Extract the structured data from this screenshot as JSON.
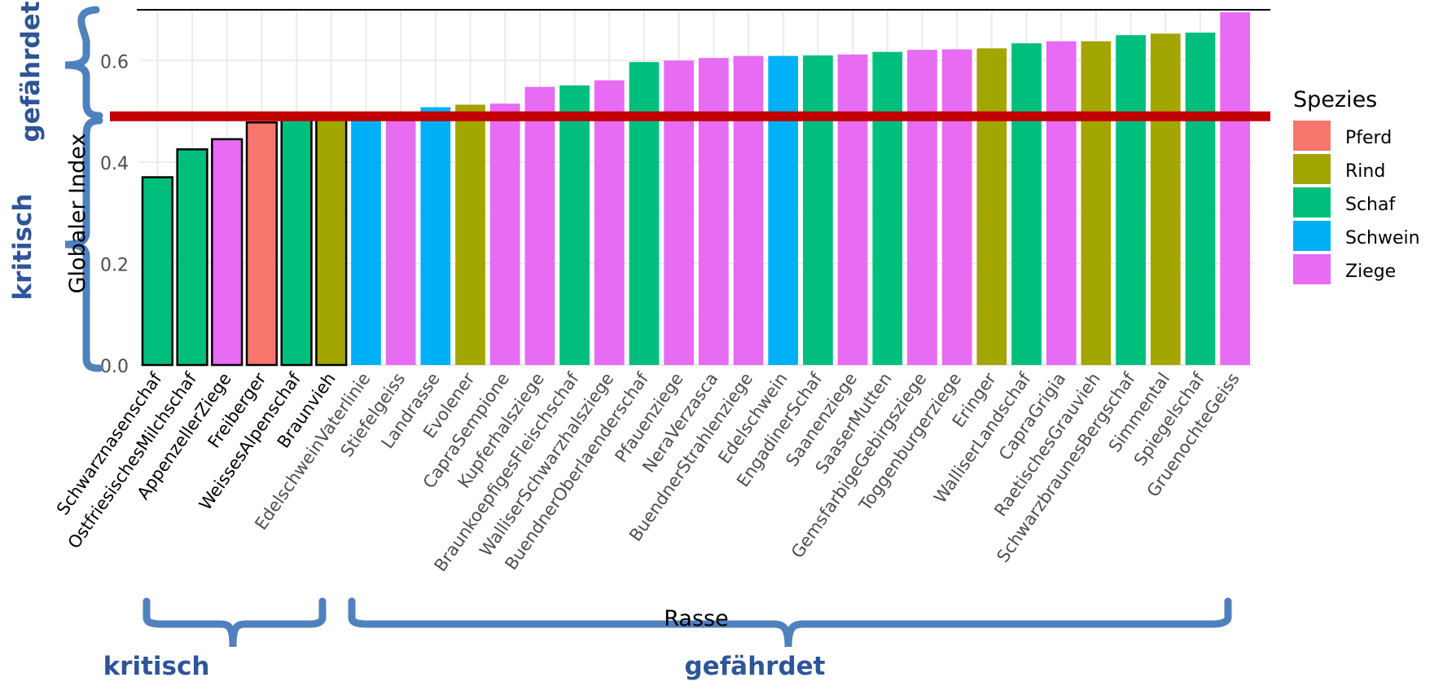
{
  "chart_data": {
    "type": "bar",
    "title": "",
    "xlabel": "Rasse",
    "ylabel": "Globaler Index",
    "ylim": [
      0,
      0.7
    ],
    "yticks": [
      0.0,
      0.2,
      0.4,
      0.6
    ],
    "ytick_labels": [
      "0.0",
      "0.2",
      "0.4",
      "0.6"
    ],
    "grid": true,
    "categories": [
      "Schwarznasenschaf",
      "OstfriesischesMilchschaf",
      "AppenzellerZiege",
      "Freiberger",
      "WeissesAlpenschaf",
      "Braunvieh",
      "EdelschweinVaterlinie",
      "Stiefelgeiss",
      "Landrasse",
      "Evolener",
      "CapraSempione",
      "Kupferhalsziege",
      "BraunkoepfigesFleischschaf",
      "WalliserSchwarzhalsziege",
      "BuendnerOberlaenderschaf",
      "Pfauenziege",
      "NeraVerzasca",
      "BuendnerStrahlenziege",
      "Edelschwein",
      "EngadinerSchaf",
      "Saanenziege",
      "SaaserMutten",
      "GemsfarbigeGebirgsziege",
      "Toggenburgerziege",
      "Eringer",
      "WalliserLandschaf",
      "CapraGrigia",
      "RaetischesGrauvieh",
      "SchwarzbraunesBergschaf",
      "Simmental",
      "Spiegelschaf",
      "GruenochteGeiss"
    ],
    "values": [
      0.37,
      0.425,
      0.445,
      0.478,
      0.49,
      0.492,
      0.494,
      0.496,
      0.508,
      0.513,
      0.515,
      0.548,
      0.551,
      0.561,
      0.597,
      0.6,
      0.605,
      0.609,
      0.609,
      0.61,
      0.612,
      0.617,
      0.621,
      0.622,
      0.624,
      0.634,
      0.638,
      0.638,
      0.65,
      0.653,
      0.655,
      0.695
    ],
    "species": [
      "Schaf",
      "Schaf",
      "Ziege",
      "Pferd",
      "Schaf",
      "Rind",
      "Schwein",
      "Ziege",
      "Schwein",
      "Rind",
      "Ziege",
      "Ziege",
      "Schaf",
      "Ziege",
      "Schaf",
      "Ziege",
      "Ziege",
      "Ziege",
      "Schwein",
      "Schaf",
      "Ziege",
      "Schaf",
      "Ziege",
      "Ziege",
      "Rind",
      "Schaf",
      "Ziege",
      "Rind",
      "Schaf",
      "Rind",
      "Schaf",
      "Ziege"
    ],
    "outlined_count": 6,
    "threshold": 0.49,
    "threshold_color": "#C00000",
    "legend": {
      "title": "Spezies",
      "position": "right",
      "items": [
        {
          "name": "Pferd",
          "color": "#F8766D"
        },
        {
          "name": "Rind",
          "color": "#A3A500"
        },
        {
          "name": "Schaf",
          "color": "#00BF7D"
        },
        {
          "name": "Schwein",
          "color": "#00B0F6"
        },
        {
          "name": "Ziege",
          "color": "#E76BF3"
        }
      ]
    }
  },
  "annotations": {
    "left_top": "gefährdet",
    "left_bottom": "kritisch",
    "bottom_left": "kritisch",
    "bottom_right": "gefährdet",
    "color": "#2E5597",
    "brace_color": "#4F81BD"
  }
}
